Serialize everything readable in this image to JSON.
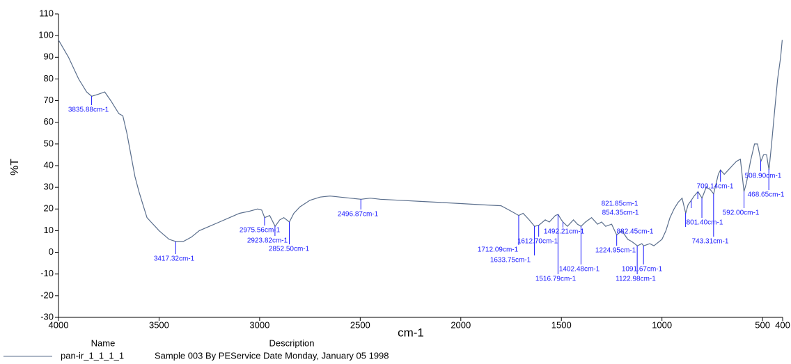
{
  "chart_data": {
    "type": "line",
    "x_label": "cm-1",
    "y_label": "%T",
    "xlim": [
      4000,
      400
    ],
    "ylim": [
      -30,
      110
    ],
    "xticks": [
      4000,
      3500,
      3000,
      2500,
      2000,
      1500,
      1000,
      500,
      400
    ],
    "yticks": [
      -30,
      -20,
      -10,
      0,
      10,
      20,
      30,
      40,
      50,
      60,
      70,
      80,
      90,
      100,
      110
    ],
    "x": [
      4000,
      3950,
      3900,
      3860,
      3835,
      3800,
      3770,
      3740,
      3700,
      3680,
      3660,
      3640,
      3620,
      3600,
      3580,
      3560,
      3540,
      3520,
      3500,
      3450,
      3417,
      3380,
      3340,
      3300,
      3250,
      3200,
      3150,
      3100,
      3050,
      3010,
      2990,
      2975,
      2950,
      2923,
      2900,
      2880,
      2852,
      2830,
      2800,
      2750,
      2700,
      2650,
      2600,
      2550,
      2496,
      2450,
      2400,
      2300,
      2200,
      2100,
      2000,
      1900,
      1800,
      1750,
      1712,
      1690,
      1660,
      1633,
      1612,
      1580,
      1560,
      1530,
      1516,
      1500,
      1492,
      1470,
      1440,
      1420,
      1402,
      1380,
      1350,
      1320,
      1300,
      1280,
      1250,
      1225,
      1200,
      1170,
      1150,
      1122,
      1100,
      1091,
      1060,
      1040,
      1000,
      980,
      960,
      940,
      920,
      900,
      882,
      870,
      854,
      840,
      821,
      801,
      780,
      760,
      743,
      720,
      709,
      690,
      670,
      650,
      630,
      610,
      592,
      580,
      560,
      540,
      525,
      508,
      495,
      480,
      468,
      455,
      440,
      425,
      410,
      402
    ],
    "series": [
      {
        "name": "pan-ir_1_1_1_1",
        "description": "Sample 003 By PEService Date Monday, January 05 1998",
        "color": "#5a6e8c",
        "values": [
          98,
          90,
          80,
          74,
          72,
          73,
          74,
          70,
          64,
          63,
          55,
          45,
          35,
          28,
          22,
          16,
          14,
          12,
          10,
          6,
          5,
          5,
          7,
          10,
          12,
          14,
          16,
          18,
          19,
          20,
          19.5,
          16,
          17,
          12,
          15,
          16,
          14,
          18,
          21,
          24,
          25.5,
          26,
          25.5,
          25,
          24.5,
          25,
          24.5,
          24,
          23.5,
          23,
          22.5,
          22,
          21.5,
          19,
          17,
          18,
          15,
          12,
          12.5,
          15,
          14,
          17,
          17.5,
          15,
          14,
          12,
          15,
          13,
          12,
          14,
          16,
          13,
          14,
          12,
          13,
          8,
          10,
          6,
          5,
          3,
          4,
          3,
          4,
          3,
          6,
          10,
          16,
          20,
          23,
          25,
          18,
          22,
          24,
          26,
          28,
          25,
          30,
          29,
          27,
          36,
          38,
          36,
          38,
          40,
          42,
          43,
          28,
          32,
          42,
          50,
          50,
          42,
          45,
          45,
          38,
          50,
          65,
          80,
          90,
          98
        ]
      }
    ],
    "legend": {
      "headers": [
        "Name",
        "Description"
      ]
    },
    "peaks": [
      {
        "value": 3835.88,
        "label": "3835.88cm-1"
      },
      {
        "value": 3417.32,
        "label": "3417.32cm-1"
      },
      {
        "value": 2975.56,
        "label": "2975.56cm-1"
      },
      {
        "value": 2923.82,
        "label": "2923.82cm-1"
      },
      {
        "value": 2852.5,
        "label": "2852.50cm-1"
      },
      {
        "value": 2496.87,
        "label": "2496.87cm-1"
      },
      {
        "value": 1712.09,
        "label": "1712.09cm-1"
      },
      {
        "value": 1633.75,
        "label": "1633.75cm-1"
      },
      {
        "value": 1612.7,
        "label": "1612.70cm-1"
      },
      {
        "value": 1492.21,
        "label": "1492.21cm-1"
      },
      {
        "value": 1402.48,
        "label": "1402.48cm-1"
      },
      {
        "value": 1516.79,
        "label": "1516.79cm-1"
      },
      {
        "value": 1224.95,
        "label": "1224.95cm-1"
      },
      {
        "value": 1091.67,
        "label": "1091.67cm-1"
      },
      {
        "value": 1122.98,
        "label": "1122.98cm-1"
      },
      {
        "value": 882.45,
        "label": "882.45cm-1"
      },
      {
        "value": 743.31,
        "label": "743.31cm-1"
      },
      {
        "value": 801.4,
        "label": "801.40cm-1"
      },
      {
        "value": 854.35,
        "label": "854.35cm-1"
      },
      {
        "value": 821.85,
        "label": "821.85cm-1"
      },
      {
        "value": 709.14,
        "label": "709.14cm-1"
      },
      {
        "value": 592.0,
        "label": "592.00cm-1"
      },
      {
        "value": 508.9,
        "label": "508.90cm-1"
      },
      {
        "value": 468.65,
        "label": "468.65cm-1"
      }
    ],
    "peak_color": "#1a1aff"
  }
}
